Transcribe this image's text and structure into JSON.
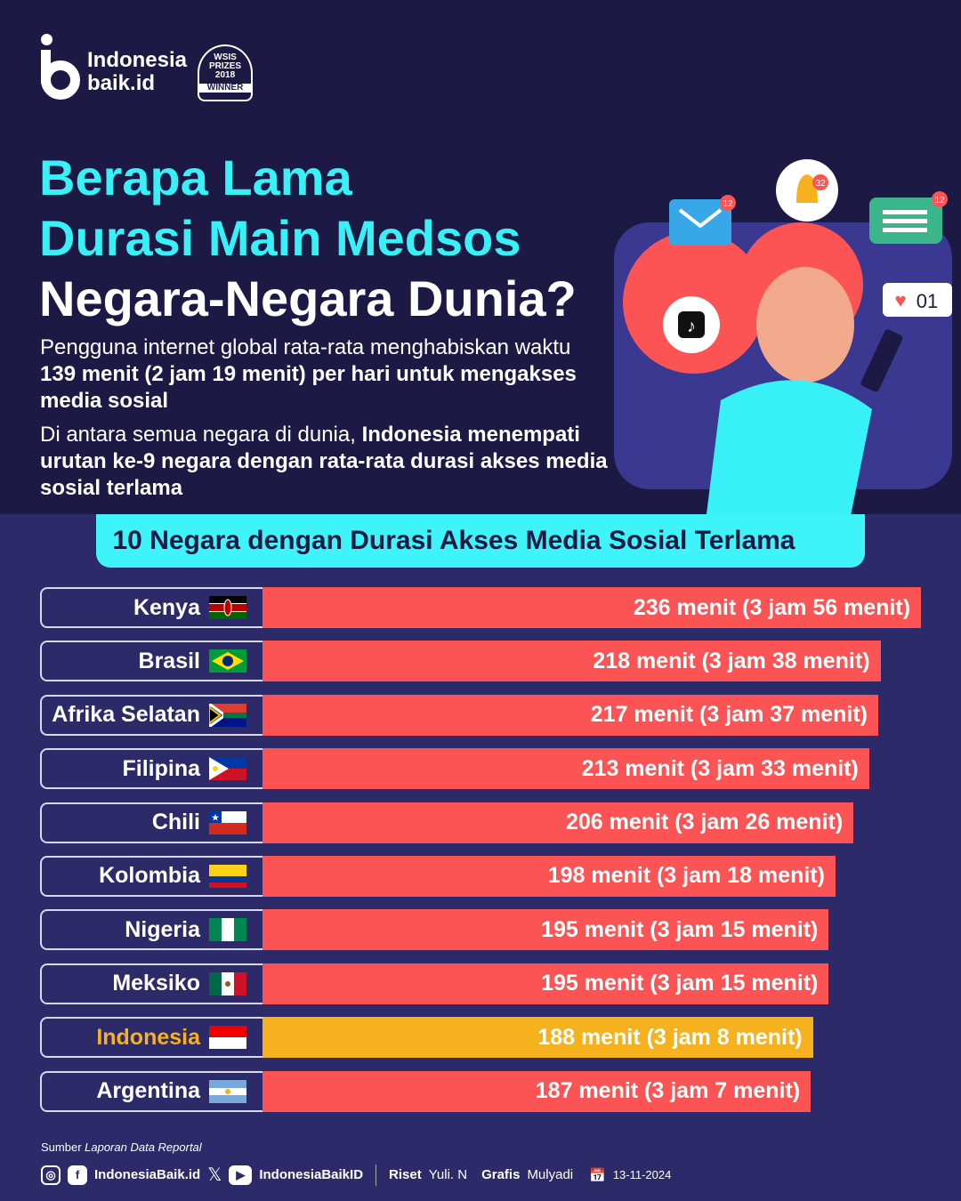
{
  "logo": {
    "line1": "Indonesia",
    "line2": "baik.id",
    "award": [
      "WSIS",
      "PRIZES",
      "2018",
      "WINNER"
    ]
  },
  "title": {
    "line1": "Berapa Lama",
    "line2": "Durasi Main Medsos",
    "line3": "Negara-Negara Dunia?"
  },
  "desc": {
    "p1a": "Pengguna internet global rata-rata  menghabiskan waktu ",
    "p1b": "139 menit (2 jam 19 menit) per hari untuk mengakses media sosial",
    "p2a": "Di antara semua negara di dunia, ",
    "p2b": "Indonesia menempati urutan ke-9 negara dengan rata-rata durasi akses media sosial terlama"
  },
  "illustration": {
    "notif_mail": "12",
    "notif_bell": "32",
    "notif_chat": "12",
    "likes": "01"
  },
  "colors": {
    "bar": "#fc5454",
    "highlight": "#f5b21e",
    "accent": "#37f1f6"
  },
  "chart_data": {
    "type": "bar",
    "orientation": "horizontal",
    "title": "10 Negara dengan Durasi Akses Media Sosial Terlama",
    "categories": [
      "Kenya",
      "Brasil",
      "Afrika Selatan",
      "Filipina",
      "Chili",
      "Kolombia",
      "Nigeria",
      "Meksiko",
      "Indonesia",
      "Argentina"
    ],
    "values": [
      236,
      218,
      217,
      213,
      206,
      198,
      195,
      195,
      188,
      187
    ],
    "labels": [
      "236 menit (3 jam 56 menit)",
      "218 menit (3 jam 38 menit)",
      "217 menit (3 jam 37 menit)",
      "213 menit (3 jam 33 menit)",
      "206 menit (3 jam 26 menit)",
      "198 menit (3 jam 18 menit)",
      "195 menit (3 jam 15 menit)",
      "195 menit (3 jam 15 menit)",
      "188 menit (3 jam 8 menit)",
      "187 menit (3 jam 7 menit)"
    ],
    "highlight": "Indonesia",
    "unit": "menit"
  },
  "footer": {
    "source_label": "Sumber ",
    "source": "Laporan Data Reportal",
    "handle1": "IndonesiaBaik.id",
    "handle2": "IndonesiaBaikID",
    "riset_label": "Riset",
    "riset": "Yuli. N",
    "grafis_label": "Grafis",
    "grafis": "Mulyadi",
    "date": "13-11-2024"
  }
}
